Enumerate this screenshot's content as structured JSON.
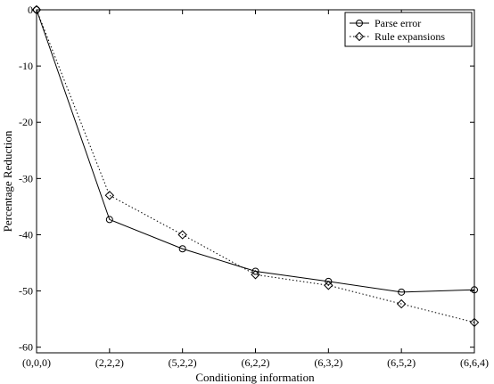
{
  "chart_data": {
    "type": "line",
    "title": "",
    "xlabel": "Conditioning information",
    "ylabel": "Percentage Reduction",
    "categories": [
      "(0,0,0)",
      "(2,2,2)",
      "(5,2,2)",
      "(6,2,2)",
      "(6,3,2)",
      "(6,5,2)",
      "(6,6,4)"
    ],
    "ylim": [
      -61,
      0
    ],
    "yticks": [
      0,
      -10,
      -20,
      -30,
      -40,
      -50,
      -60
    ],
    "grid": false,
    "legend_position": "top-right",
    "series": [
      {
        "name": "Parse error",
        "marker": "circle",
        "line_style": "solid",
        "color": "#000000",
        "values": [
          0,
          -37.3,
          -42.5,
          -46.5,
          -48.3,
          -50.2,
          -49.8
        ]
      },
      {
        "name": "Rule expansions",
        "marker": "diamond",
        "line_style": "dotted",
        "color": "#000000",
        "values": [
          0,
          -33,
          -40,
          -47.1,
          -49,
          -52.3,
          -55.6
        ]
      }
    ]
  }
}
